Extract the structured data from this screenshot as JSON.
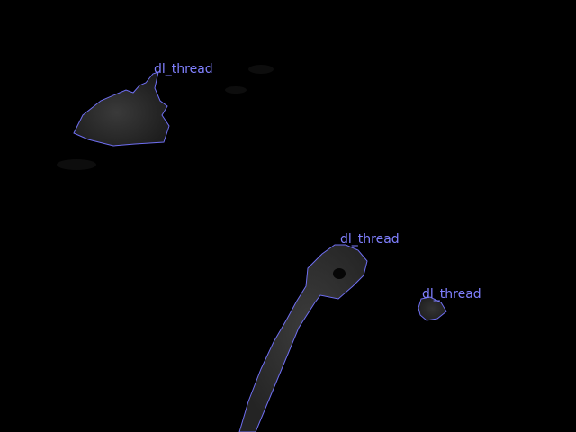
{
  "colors": {
    "background": "#000000",
    "contour": "#6f6ff2",
    "label": "#8080ff",
    "blob_fill": "#2a2a2a",
    "blob_core": "#3a3a3a",
    "dark_spot": "#060606"
  },
  "detections": [
    {
      "label": "dl_thread"
    },
    {
      "label": "dl_thread"
    },
    {
      "label": "dl_thread"
    }
  ]
}
